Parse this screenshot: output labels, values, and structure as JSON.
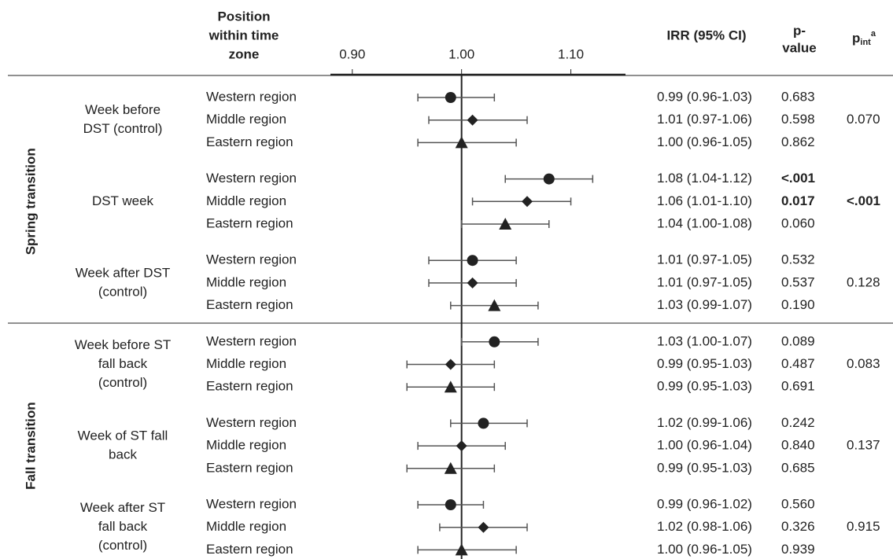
{
  "chart_data": {
    "type": "forest",
    "header": {
      "position": [
        "Position",
        "within time",
        "zone"
      ],
      "irr": "IRR (95% CI)",
      "p": [
        "p-",
        "value"
      ],
      "pint": {
        "base": "p",
        "sub": "int",
        "sup": "a"
      }
    },
    "xlim": [
      0.88,
      1.15
    ],
    "xticks": [
      {
        "value": 0.9,
        "label": "0.90"
      },
      {
        "value": 1.0,
        "label": "1.00"
      },
      {
        "value": 1.1,
        "label": "1.10"
      }
    ],
    "reference": 1.0,
    "groups": [
      {
        "label": "Spring transition",
        "periods": [
          {
            "label": [
              "Week before",
              "DST (control)"
            ],
            "p_int": "0.070",
            "rows": [
              {
                "region": "Western region",
                "marker": "circle",
                "est": 0.99,
                "lo": 0.96,
                "hi": 1.03,
                "irr": "0.99 (0.96-1.03)",
                "p": "0.683"
              },
              {
                "region": "Middle region",
                "marker": "diamond",
                "est": 1.01,
                "lo": 0.97,
                "hi": 1.06,
                "irr": "1.01 (0.97-1.06)",
                "p": "0.598"
              },
              {
                "region": "Eastern region",
                "marker": "triangle",
                "est": 1.0,
                "lo": 0.96,
                "hi": 1.05,
                "irr": "1.00 (0.96-1.05)",
                "p": "0.862"
              }
            ]
          },
          {
            "label": [
              "DST week"
            ],
            "p_int": "<.001",
            "p_int_bold": true,
            "rows": [
              {
                "region": "Western region",
                "marker": "circle",
                "est": 1.08,
                "lo": 1.04,
                "hi": 1.12,
                "irr": "1.08 (1.04-1.12)",
                "p": "<.001",
                "p_bold": true
              },
              {
                "region": "Middle region",
                "marker": "diamond",
                "est": 1.06,
                "lo": 1.01,
                "hi": 1.1,
                "irr": "1.06 (1.01-1.10)",
                "p": "0.017",
                "p_bold": true
              },
              {
                "region": "Eastern region",
                "marker": "triangle",
                "est": 1.04,
                "lo": 1.0,
                "hi": 1.08,
                "irr": "1.04 (1.00-1.08)",
                "p": "0.060"
              }
            ]
          },
          {
            "label": [
              "Week after DST",
              "(control)"
            ],
            "p_int": "0.128",
            "rows": [
              {
                "region": "Western region",
                "marker": "circle",
                "est": 1.01,
                "lo": 0.97,
                "hi": 1.05,
                "irr": "1.01 (0.97-1.05)",
                "p": "0.532"
              },
              {
                "region": "Middle region",
                "marker": "diamond",
                "est": 1.01,
                "lo": 0.97,
                "hi": 1.05,
                "irr": "1.01 (0.97-1.05)",
                "p": "0.537"
              },
              {
                "region": "Eastern region",
                "marker": "triangle",
                "est": 1.03,
                "lo": 0.99,
                "hi": 1.07,
                "irr": "1.03 (0.99-1.07)",
                "p": "0.190"
              }
            ]
          }
        ]
      },
      {
        "label": "Fall transition",
        "periods": [
          {
            "label": [
              "Week before ST",
              "fall back",
              "(control)"
            ],
            "p_int": "0.083",
            "rows": [
              {
                "region": "Western region",
                "marker": "circle",
                "est": 1.03,
                "lo": 1.0,
                "hi": 1.07,
                "irr": "1.03 (1.00-1.07)",
                "p": "0.089"
              },
              {
                "region": "Middle region",
                "marker": "diamond",
                "est": 0.99,
                "lo": 0.95,
                "hi": 1.03,
                "irr": "0.99 (0.95-1.03)",
                "p": "0.487"
              },
              {
                "region": "Eastern region",
                "marker": "triangle",
                "est": 0.99,
                "lo": 0.95,
                "hi": 1.03,
                "irr": "0.99 (0.95-1.03)",
                "p": "0.691"
              }
            ]
          },
          {
            "label": [
              "Week of ST fall",
              "back"
            ],
            "p_int": "0.137",
            "rows": [
              {
                "region": "Western region",
                "marker": "circle",
                "est": 1.02,
                "lo": 0.99,
                "hi": 1.06,
                "irr": "1.02 (0.99-1.06)",
                "p": "0.242"
              },
              {
                "region": "Middle region",
                "marker": "diamond",
                "est": 1.0,
                "lo": 0.96,
                "hi": 1.04,
                "irr": "1.00 (0.96-1.04)",
                "p": "0.840"
              },
              {
                "region": "Eastern region",
                "marker": "triangle",
                "est": 0.99,
                "lo": 0.95,
                "hi": 1.03,
                "irr": "0.99 (0.95-1.03)",
                "p": "0.685"
              }
            ]
          },
          {
            "label": [
              "Week after ST",
              "fall back",
              "(control)"
            ],
            "p_int": "0.915",
            "rows": [
              {
                "region": "Western region",
                "marker": "circle",
                "est": 0.99,
                "lo": 0.96,
                "hi": 1.02,
                "irr": "0.99 (0.96-1.02)",
                "p": "0.560"
              },
              {
                "region": "Middle region",
                "marker": "diamond",
                "est": 1.02,
                "lo": 0.98,
                "hi": 1.06,
                "irr": "1.02 (0.98-1.06)",
                "p": "0.326"
              },
              {
                "region": "Eastern region",
                "marker": "triangle",
                "est": 1.0,
                "lo": 0.96,
                "hi": 1.05,
                "irr": "1.00 (0.96-1.05)",
                "p": "0.939"
              }
            ]
          }
        ]
      }
    ]
  }
}
